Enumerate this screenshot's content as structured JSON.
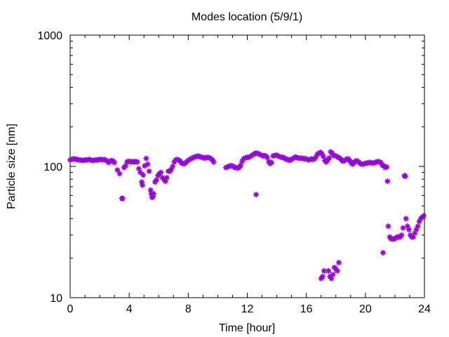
{
  "chart_data": {
    "type": "scatter",
    "title": "Modes location (5/9/1)",
    "xlabel": "Time [hour]",
    "ylabel": "Particle size [nm]",
    "xlim": [
      0,
      24
    ],
    "ylim": [
      10,
      1000
    ],
    "yscale": "log",
    "grid": false,
    "legend": "none",
    "x_ticks": [
      {
        "value": 0,
        "label": "0"
      },
      {
        "value": 4,
        "label": "4"
      },
      {
        "value": 8,
        "label": "8"
      },
      {
        "value": 12,
        "label": "12"
      },
      {
        "value": 16,
        "label": "16"
      },
      {
        "value": 20,
        "label": "20"
      },
      {
        "value": 24,
        "label": "24"
      }
    ],
    "y_ticks": [
      {
        "value": 10,
        "label": "10"
      },
      {
        "value": 100,
        "label": "100"
      },
      {
        "value": 1000,
        "label": "1000"
      }
    ],
    "series": [
      {
        "color": "#9400d3",
        "points": [
          [
            0.0,
            112
          ],
          [
            0.1,
            113
          ],
          [
            0.2,
            114
          ],
          [
            0.3,
            114
          ],
          [
            0.4,
            113
          ],
          [
            0.5,
            113
          ],
          [
            0.6,
            112
          ],
          [
            0.7,
            112
          ],
          [
            0.8,
            111
          ],
          [
            0.9,
            111
          ],
          [
            1.0,
            112
          ],
          [
            1.1,
            112
          ],
          [
            1.2,
            112
          ],
          [
            1.3,
            113
          ],
          [
            1.4,
            112
          ],
          [
            1.5,
            111
          ],
          [
            1.6,
            111
          ],
          [
            1.7,
            112
          ],
          [
            1.8,
            112
          ],
          [
            1.9,
            112
          ],
          [
            2.0,
            113
          ],
          [
            2.1,
            113
          ],
          [
            2.2,
            112
          ],
          [
            2.3,
            113
          ],
          [
            2.4,
            112
          ],
          [
            2.5,
            110
          ],
          [
            2.6,
            107
          ],
          [
            2.7,
            109
          ],
          [
            2.8,
            111
          ],
          [
            2.9,
            110
          ],
          [
            3.0,
            107
          ],
          [
            3.2,
            94
          ],
          [
            3.35,
            88
          ],
          [
            3.5,
            57
          ],
          [
            3.55,
            57
          ],
          [
            3.65,
            98
          ],
          [
            3.75,
            101
          ],
          [
            3.85,
            108
          ],
          [
            3.95,
            109
          ],
          [
            4.05,
            109
          ],
          [
            4.15,
            108
          ],
          [
            4.25,
            109
          ],
          [
            4.35,
            108
          ],
          [
            4.45,
            109
          ],
          [
            4.55,
            108
          ],
          [
            4.65,
            96
          ],
          [
            4.75,
            90
          ],
          [
            4.85,
            76
          ],
          [
            4.9,
            72
          ],
          [
            4.95,
            86
          ],
          [
            5.05,
            101
          ],
          [
            5.15,
            115
          ],
          [
            5.25,
            104
          ],
          [
            5.35,
            92
          ],
          [
            5.45,
            66
          ],
          [
            5.5,
            62
          ],
          [
            5.55,
            58
          ],
          [
            5.6,
            59
          ],
          [
            5.65,
            62
          ],
          [
            5.75,
            76
          ],
          [
            5.85,
            79
          ],
          [
            5.95,
            85
          ],
          [
            6.05,
            88
          ],
          [
            6.15,
            90
          ],
          [
            6.25,
            82
          ],
          [
            6.35,
            80
          ],
          [
            6.45,
            77
          ],
          [
            6.55,
            82
          ],
          [
            6.65,
            92
          ],
          [
            6.75,
            92
          ],
          [
            6.85,
            95
          ],
          [
            6.95,
            100
          ],
          [
            7.05,
            108
          ],
          [
            7.15,
            112
          ],
          [
            7.25,
            113
          ],
          [
            7.35,
            112
          ],
          [
            7.45,
            110
          ],
          [
            7.55,
            106
          ],
          [
            7.65,
            105
          ],
          [
            7.75,
            105
          ],
          [
            7.85,
            107
          ],
          [
            7.95,
            110
          ],
          [
            8.05,
            112
          ],
          [
            8.15,
            114
          ],
          [
            8.25,
            115
          ],
          [
            8.35,
            117
          ],
          [
            8.45,
            118
          ],
          [
            8.55,
            119
          ],
          [
            8.65,
            120
          ],
          [
            8.75,
            119
          ],
          [
            8.85,
            118
          ],
          [
            8.95,
            117
          ],
          [
            9.05,
            116
          ],
          [
            9.15,
            116
          ],
          [
            9.25,
            117
          ],
          [
            9.35,
            117
          ],
          [
            9.45,
            116
          ],
          [
            9.55,
            114
          ],
          [
            9.65,
            112
          ],
          [
            9.72,
            108
          ],
          [
            10.55,
            98
          ],
          [
            10.65,
            99
          ],
          [
            10.75,
            100
          ],
          [
            10.85,
            101
          ],
          [
            10.95,
            101
          ],
          [
            11.05,
            100
          ],
          [
            11.15,
            98
          ],
          [
            11.25,
            98
          ],
          [
            11.35,
            97
          ],
          [
            11.45,
            98
          ],
          [
            11.55,
            102
          ],
          [
            11.65,
            109
          ],
          [
            11.75,
            114
          ],
          [
            11.85,
            116
          ],
          [
            11.95,
            117
          ],
          [
            12.05,
            117
          ],
          [
            12.15,
            118
          ],
          [
            12.25,
            120
          ],
          [
            12.35,
            122
          ],
          [
            12.45,
            124
          ],
          [
            12.55,
            126
          ],
          [
            12.6,
            61
          ],
          [
            12.65,
            126
          ],
          [
            12.75,
            125
          ],
          [
            12.85,
            123
          ],
          [
            12.95,
            122
          ],
          [
            13.05,
            120
          ],
          [
            13.15,
            121
          ],
          [
            13.25,
            120
          ],
          [
            13.35,
            117
          ],
          [
            13.45,
            109
          ],
          [
            13.55,
            105
          ],
          [
            13.65,
            107
          ],
          [
            13.75,
            120
          ],
          [
            13.85,
            121
          ],
          [
            13.95,
            122
          ],
          [
            14.05,
            121
          ],
          [
            14.15,
            119
          ],
          [
            14.25,
            118
          ],
          [
            14.35,
            117
          ],
          [
            14.45,
            117
          ],
          [
            14.55,
            115
          ],
          [
            14.65,
            113
          ],
          [
            14.75,
            113
          ],
          [
            14.85,
            111
          ],
          [
            14.95,
            112
          ],
          [
            15.05,
            114
          ],
          [
            15.15,
            116
          ],
          [
            15.25,
            118
          ],
          [
            15.35,
            117
          ],
          [
            15.45,
            116
          ],
          [
            15.55,
            115
          ],
          [
            15.65,
            116
          ],
          [
            15.75,
            115
          ],
          [
            15.85,
            114
          ],
          [
            15.95,
            115
          ],
          [
            16.05,
            113
          ],
          [
            16.15,
            112
          ],
          [
            16.25,
            113
          ],
          [
            16.35,
            114
          ],
          [
            16.45,
            113
          ],
          [
            16.55,
            114
          ],
          [
            16.65,
            118
          ],
          [
            16.75,
            124
          ],
          [
            16.85,
            126
          ],
          [
            16.95,
            128
          ],
          [
            17.0,
            14
          ],
          [
            17.05,
            125
          ],
          [
            17.1,
            14.5
          ],
          [
            17.15,
            119
          ],
          [
            17.2,
            16
          ],
          [
            17.25,
            111
          ],
          [
            17.35,
            108
          ],
          [
            17.45,
            112
          ],
          [
            17.5,
            16
          ],
          [
            17.55,
            116
          ],
          [
            17.6,
            14.5
          ],
          [
            17.65,
            129
          ],
          [
            17.7,
            14
          ],
          [
            17.75,
            126
          ],
          [
            17.8,
            15
          ],
          [
            17.85,
            121
          ],
          [
            17.9,
            17
          ],
          [
            17.95,
            121
          ],
          [
            18.0,
            16.5
          ],
          [
            18.05,
            119
          ],
          [
            18.1,
            16
          ],
          [
            18.15,
            117
          ],
          [
            18.2,
            18.5
          ],
          [
            18.25,
            116
          ],
          [
            18.35,
            113
          ],
          [
            18.45,
            110
          ],
          [
            18.55,
            110
          ],
          [
            18.65,
            112
          ],
          [
            18.75,
            114
          ],
          [
            18.85,
            114
          ],
          [
            18.95,
            110
          ],
          [
            19.05,
            106
          ],
          [
            19.15,
            104
          ],
          [
            19.25,
            108
          ],
          [
            19.35,
            110
          ],
          [
            19.45,
            110
          ],
          [
            19.55,
            108
          ],
          [
            19.65,
            105
          ],
          [
            19.75,
            104
          ],
          [
            19.85,
            104
          ],
          [
            19.95,
            105
          ],
          [
            20.05,
            106
          ],
          [
            20.15,
            106
          ],
          [
            20.25,
            107
          ],
          [
            20.35,
            107
          ],
          [
            20.45,
            106
          ],
          [
            20.55,
            106
          ],
          [
            20.65,
            107
          ],
          [
            20.75,
            108
          ],
          [
            20.85,
            109
          ],
          [
            20.95,
            108
          ],
          [
            21.05,
            107
          ],
          [
            21.15,
            102
          ],
          [
            21.2,
            22
          ],
          [
            21.25,
            101
          ],
          [
            21.35,
            98
          ],
          [
            21.45,
            99
          ],
          [
            21.5,
            77
          ],
          [
            21.55,
            35
          ],
          [
            21.65,
            29
          ],
          [
            21.75,
            28
          ],
          [
            21.85,
            28
          ],
          [
            21.95,
            28
          ],
          [
            22.05,
            28.5
          ],
          [
            22.15,
            29
          ],
          [
            22.25,
            29
          ],
          [
            22.35,
            29
          ],
          [
            22.45,
            30
          ],
          [
            22.55,
            34
          ],
          [
            22.65,
            85
          ],
          [
            22.7,
            84
          ],
          [
            22.75,
            40
          ],
          [
            22.85,
            35
          ],
          [
            22.95,
            33
          ],
          [
            23.05,
            30
          ],
          [
            23.15,
            29
          ],
          [
            23.25,
            29
          ],
          [
            23.35,
            31
          ],
          [
            23.45,
            33
          ],
          [
            23.55,
            35
          ],
          [
            23.65,
            38
          ],
          [
            23.75,
            40
          ],
          [
            23.85,
            41
          ],
          [
            23.95,
            42
          ]
        ]
      }
    ]
  }
}
